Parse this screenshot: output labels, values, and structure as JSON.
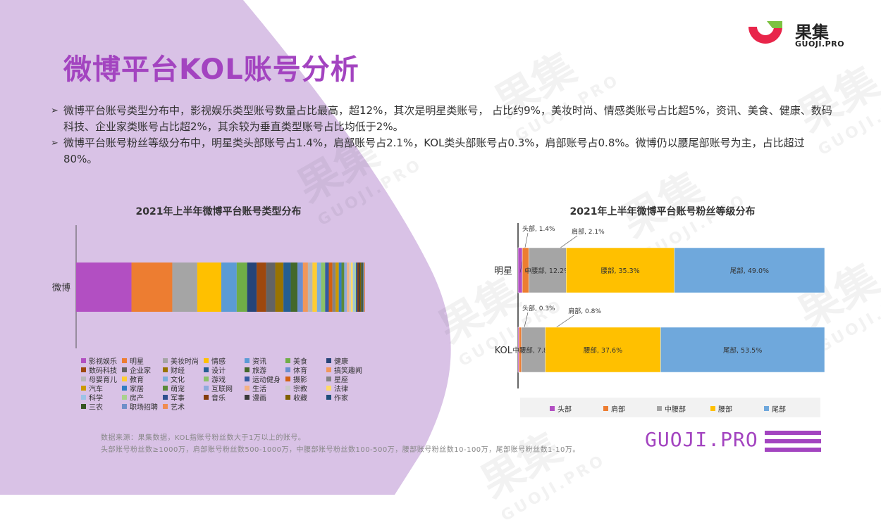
{
  "page": {
    "title": "微博平台KOL账号分析",
    "logo_name": "果集",
    "logo_sub": "GUOJI.PRO",
    "watermark": "果集",
    "watermark_sub": "GUOJI.PRO",
    "footer_brand": "GUOJI.PRO",
    "colors": {
      "accent": "#a344c0",
      "background_shape": "#d9c2e6"
    }
  },
  "bullets": [
    "微博平台账号类型分布中，影视娱乐类型账号数量占比最高，超12%，其次是明星类账号， 占比约9%，美妆时尚、情感类账号占比超5%，资讯、美食、健康、数码科技、企业家类账号占比超2%，其余较为垂直类型账号占比均低于2%。",
    "微博平台账号粉丝等级分布中，明星类头部账号占1.4%，肩部账号占2.1%，KOL类头部账号占0.3%，肩部账号占0.8%。微博仍以腰尾部账号为主，占比超过80%。"
  ],
  "source_lines": [
    "数据来源：果集数据，KOL指账号粉丝数大于1万以上的账号。",
    "头部账号粉丝数≥1000万，肩部账号粉丝数500-1000万，中腰部账号粉丝数100-500万，腰部账号粉丝数10-100万，尾部账号粉丝数1-10万。"
  ],
  "chart_data": [
    {
      "type": "bar",
      "orientation": "horizontal-stacked",
      "title": "2021年上半年微博平台账号类型分布",
      "categories": [
        "微博"
      ],
      "legend_position": "bottom",
      "series": [
        {
          "name": "影视娱乐",
          "values": [
            12.2
          ],
          "color": "#b24fc2"
        },
        {
          "name": "明星",
          "values": [
            9.0
          ],
          "color": "#ed7d31"
        },
        {
          "name": "美妆时尚",
          "values": [
            5.5
          ],
          "color": "#a5a5a5"
        },
        {
          "name": "情感",
          "values": [
            5.3
          ],
          "color": "#ffc000"
        },
        {
          "name": "资讯",
          "values": [
            3.4
          ],
          "color": "#5b9bd5"
        },
        {
          "name": "美食",
          "values": [
            2.3
          ],
          "color": "#70ad47"
        },
        {
          "name": "健康",
          "values": [
            2.1
          ],
          "color": "#264478"
        },
        {
          "name": "数码科技",
          "values": [
            2.1
          ],
          "color": "#9e480e"
        },
        {
          "name": "企业家",
          "values": [
            2.0
          ],
          "color": "#636363"
        },
        {
          "name": "财经",
          "values": [
            1.8
          ],
          "color": "#997300"
        },
        {
          "name": "设计",
          "values": [
            1.6
          ],
          "color": "#255e91"
        },
        {
          "name": "旅游",
          "values": [
            1.5
          ],
          "color": "#43682b"
        },
        {
          "name": "体育",
          "values": [
            1.2
          ],
          "color": "#698ed0"
        },
        {
          "name": "搞笑趣闻",
          "values": [
            1.1
          ],
          "color": "#f1975a"
        },
        {
          "name": "母婴育儿",
          "values": [
            1.0
          ],
          "color": "#b7b7b7"
        },
        {
          "name": "教育",
          "values": [
            1.0
          ],
          "color": "#ffcd33"
        },
        {
          "name": "文化",
          "values": [
            0.9
          ],
          "color": "#7cafdd"
        },
        {
          "name": "游戏",
          "values": [
            0.9
          ],
          "color": "#8cc168"
        },
        {
          "name": "运动健身",
          "values": [
            0.8
          ],
          "color": "#335aa1"
        },
        {
          "name": "摄影",
          "values": [
            0.8
          ],
          "color": "#d26012"
        },
        {
          "name": "星座",
          "values": [
            0.7
          ],
          "color": "#848484"
        },
        {
          "name": "汽车",
          "values": [
            0.7
          ],
          "color": "#cc9a00"
        },
        {
          "name": "家居",
          "values": [
            0.6
          ],
          "color": "#327dc2"
        },
        {
          "name": "萌宠",
          "values": [
            0.6
          ],
          "color": "#5a8a39"
        },
        {
          "name": "互联网",
          "values": [
            0.6
          ],
          "color": "#8faadc"
        },
        {
          "name": "生活",
          "values": [
            0.5
          ],
          "color": "#f4b183"
        },
        {
          "name": "宗教",
          "values": [
            0.4
          ],
          "color": "#c9c9c9"
        },
        {
          "name": "法律",
          "values": [
            0.4
          ],
          "color": "#ffd966"
        },
        {
          "name": "科学",
          "values": [
            0.4
          ],
          "color": "#9dc3e6"
        },
        {
          "name": "房产",
          "values": [
            0.3
          ],
          "color": "#a9d18e"
        },
        {
          "name": "军事",
          "values": [
            0.3
          ],
          "color": "#2f4f8f"
        },
        {
          "name": "音乐",
          "values": [
            0.3
          ],
          "color": "#843c0c"
        },
        {
          "name": "漫画",
          "values": [
            0.3
          ],
          "color": "#3a3a3a"
        },
        {
          "name": "收藏",
          "values": [
            0.3
          ],
          "color": "#7f6000"
        },
        {
          "name": "作家",
          "values": [
            0.2
          ],
          "color": "#1f4e79"
        },
        {
          "name": "三农",
          "values": [
            0.2
          ],
          "color": "#375623"
        },
        {
          "name": "职场招聘",
          "values": [
            0.2
          ],
          "color": "#6f8fc9"
        },
        {
          "name": "艺术",
          "values": [
            0.2
          ],
          "color": "#f08c50"
        }
      ]
    },
    {
      "type": "bar",
      "orientation": "horizontal-stacked-100",
      "title": "2021年上半年微博平台账号粉丝等级分布",
      "categories": [
        "明星",
        "KOL"
      ],
      "legend_position": "bottom",
      "xlim": [
        0,
        100
      ],
      "series": [
        {
          "name": "头部",
          "values": [
            1.4,
            0.3
          ],
          "color": "#b24fc2",
          "labels": [
            "头部, 1.4%",
            "头部, 0.3%"
          ]
        },
        {
          "name": "肩部",
          "values": [
            2.1,
            0.8
          ],
          "color": "#ed7d31",
          "labels": [
            "肩部, 2.1%",
            "肩部, 0.8%"
          ]
        },
        {
          "name": "中腰部",
          "values": [
            12.2,
            7.8
          ],
          "color": "#a5a5a5",
          "labels": [
            "中腰部, 12.2%",
            "中腰部, 7.8%"
          ]
        },
        {
          "name": "腰部",
          "values": [
            35.3,
            37.6
          ],
          "color": "#ffc000",
          "labels": [
            "腰部, 35.3%",
            "腰部, 37.6%"
          ]
        },
        {
          "name": "尾部",
          "values": [
            49.0,
            53.5
          ],
          "color": "#6fa8dc",
          "labels": [
            "尾部, 49.0%",
            "尾部, 53.5%"
          ]
        }
      ]
    }
  ]
}
